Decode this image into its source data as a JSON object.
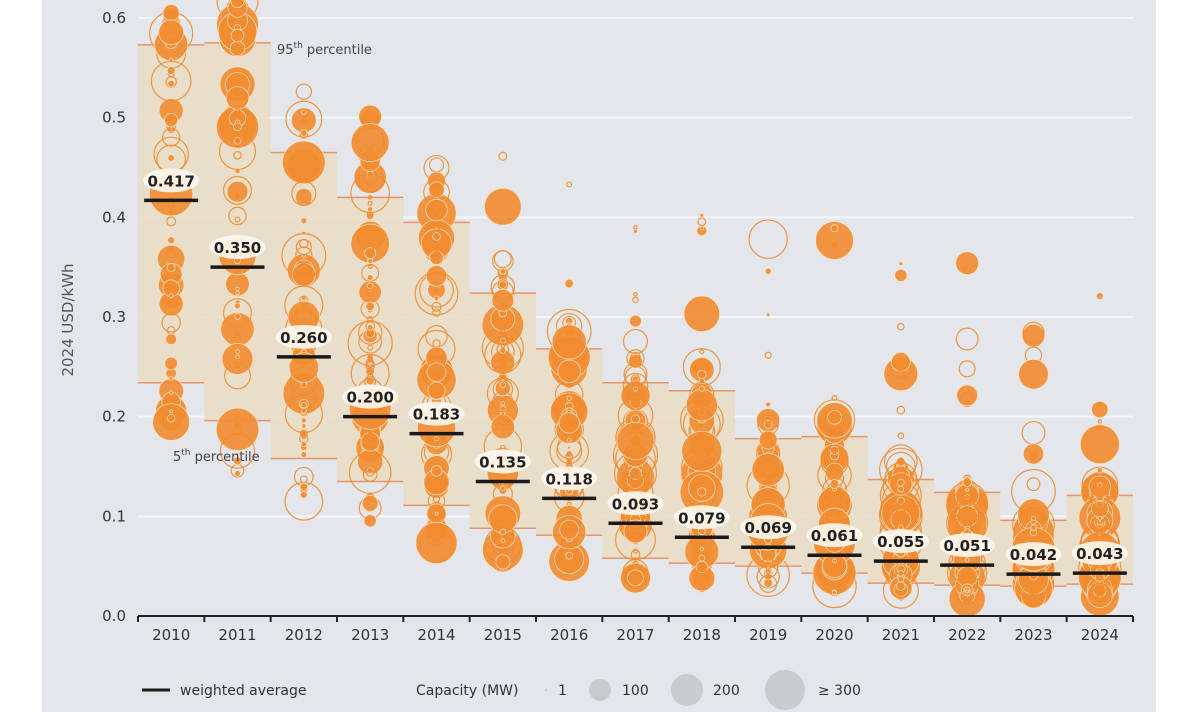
{
  "chart_data": {
    "type": "scatter",
    "title": "",
    "xlabel": "",
    "ylabel": "2024 USD/kWh",
    "ylim": [
      0,
      0.6
    ],
    "yticks": [
      "0.0",
      "0.1",
      "0.2",
      "0.3",
      "0.4",
      "0.5",
      "0.6"
    ],
    "grid": true,
    "categories": [
      "2010",
      "2011",
      "2012",
      "2013",
      "2014",
      "2015",
      "2016",
      "2017",
      "2018",
      "2019",
      "2020",
      "2021",
      "2022",
      "2023",
      "2024"
    ],
    "weighted_average": [
      0.417,
      0.35,
      0.26,
      0.2,
      0.183,
      0.135,
      0.118,
      0.093,
      0.079,
      0.069,
      0.061,
      0.055,
      0.051,
      0.042,
      0.043
    ],
    "weighted_average_labels": [
      "0.417",
      "0.350",
      "0.260",
      "0.200",
      "0.183",
      "0.135",
      "0.118",
      "0.093",
      "0.079",
      "0.069",
      "0.061",
      "0.055",
      "0.051",
      "0.042",
      "0.043"
    ],
    "percentile_95": [
      0.573,
      0.575,
      0.465,
      0.42,
      0.395,
      0.324,
      0.268,
      0.234,
      0.226,
      0.178,
      0.18,
      0.137,
      0.124,
      0.096,
      0.121
    ],
    "percentile_5": [
      0.234,
      0.196,
      0.158,
      0.135,
      0.111,
      0.088,
      0.081,
      0.058,
      0.053,
      0.05,
      0.043,
      0.033,
      0.031,
      0.03,
      0.032
    ],
    "annotations": {
      "p95_label_main": "95",
      "p95_label_sup": "th",
      "p95_label_rest": " percentile",
      "p5_label_main": "5",
      "p5_label_sup": "th",
      "p5_label_rest": " percentile"
    },
    "legend": {
      "weighted_average": "weighted average",
      "capacity_title": "Capacity (MW)",
      "sizes": [
        "1",
        "100",
        "200",
        "≥ 300"
      ]
    },
    "colors": {
      "bubble": "#f28c30",
      "band": "#e9dcc4",
      "band_line": "#e8956a",
      "average_line": "#1a1a1a",
      "legend_bubble": "#c9cbce"
    }
  }
}
